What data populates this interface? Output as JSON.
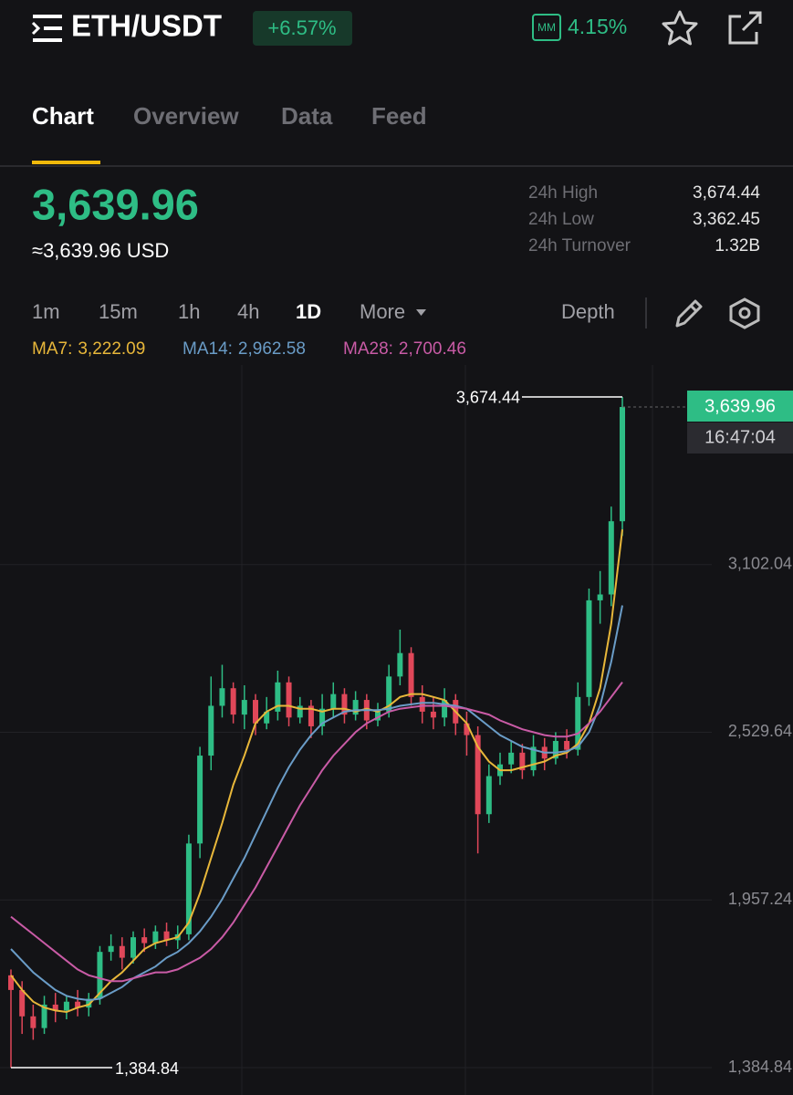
{
  "header": {
    "pair": "ETH/USDT",
    "change": "+6.57%",
    "mm_icon": "MM",
    "mm_value": "4.15%"
  },
  "tabs": [
    "Chart",
    "Overview",
    "Data",
    "Feed"
  ],
  "ticker": {
    "price": "3,639.96",
    "usd_price": "≈3,639.96 USD",
    "stats": [
      {
        "label": "24h High",
        "value": "3,674.44"
      },
      {
        "label": "24h Low",
        "value": "3,362.45"
      },
      {
        "label": "24h Turnover",
        "value": "1.32B"
      }
    ]
  },
  "toolbar": {
    "intervals": [
      "1m",
      "15m",
      "1h",
      "4h",
      "1D"
    ],
    "more": "More",
    "depth": "Depth"
  },
  "chart_data": {
    "type": "candlestick",
    "ylim": [
      1291.5,
      3783.3
    ],
    "yticks": [
      {
        "value": 3102.04,
        "label": "3,102.04"
      },
      {
        "value": 2529.64,
        "label": "2,529.64"
      },
      {
        "value": 1957.24,
        "label": "1,957.24"
      },
      {
        "value": 1384.84,
        "label": "1,384.84"
      }
    ],
    "grid": true,
    "up_color": "#2ebd85",
    "down_color": "#e04759",
    "open": [
      1700,
      1650,
      1560,
      1520,
      1600,
      1580,
      1610,
      1590,
      1620,
      1780,
      1800,
      1760,
      1830,
      1810,
      1850,
      1820,
      1840,
      2150,
      2450,
      2620,
      2680,
      2590,
      2640,
      2560,
      2600,
      2700,
      2580,
      2620,
      2550,
      2610,
      2660,
      2590,
      2640,
      2570,
      2600,
      2720,
      2800,
      2650,
      2600,
      2580,
      2640,
      2560,
      2520,
      2250,
      2380,
      2420,
      2460,
      2400,
      2480,
      2440,
      2500,
      2470,
      2650,
      2980,
      3000,
      3250
    ],
    "high": [
      1720,
      1680,
      1600,
      1630,
      1640,
      1630,
      1650,
      1640,
      1800,
      1840,
      1830,
      1850,
      1860,
      1870,
      1880,
      1870,
      2180,
      2480,
      2720,
      2760,
      2700,
      2690,
      2660,
      2650,
      2740,
      2720,
      2650,
      2640,
      2660,
      2700,
      2680,
      2670,
      2660,
      2630,
      2760,
      2880,
      2820,
      2690,
      2650,
      2680,
      2660,
      2600,
      2550,
      2420,
      2460,
      2500,
      2490,
      2520,
      2510,
      2530,
      2540,
      2700,
      3020,
      3080,
      3300,
      3674.44
    ],
    "low": [
      1384.84,
      1500,
      1480,
      1500,
      1540,
      1550,
      1560,
      1560,
      1600,
      1750,
      1720,
      1740,
      1780,
      1790,
      1800,
      1790,
      1820,
      2100,
      2400,
      2580,
      2560,
      2540,
      2520,
      2540,
      2570,
      2550,
      2560,
      2510,
      2520,
      2580,
      2560,
      2570,
      2540,
      2550,
      2580,
      2690,
      2620,
      2560,
      2540,
      2550,
      2520,
      2450,
      2116,
      2220,
      2350,
      2390,
      2370,
      2380,
      2400,
      2420,
      2440,
      2450,
      2620,
      2900,
      2960,
      3200
    ],
    "close": [
      1650,
      1560,
      1520,
      1600,
      1580,
      1610,
      1590,
      1620,
      1780,
      1800,
      1760,
      1830,
      1810,
      1850,
      1820,
      1840,
      2150,
      2450,
      2620,
      2680,
      2590,
      2640,
      2560,
      2600,
      2700,
      2580,
      2620,
      2550,
      2610,
      2660,
      2590,
      2640,
      2570,
      2600,
      2720,
      2800,
      2650,
      2600,
      2580,
      2640,
      2560,
      2520,
      2250,
      2380,
      2420,
      2460,
      2400,
      2480,
      2440,
      2500,
      2470,
      2650,
      2980,
      3000,
      3250,
      3639.96
    ],
    "ma": [
      {
        "name": "MA7:",
        "value_label": "3,222.09",
        "color": "#e8b73a",
        "values": [
          1700,
          1650,
          1610,
          1590,
          1580,
          1575,
          1590,
          1600,
          1640,
          1680,
          1710,
          1750,
          1790,
          1810,
          1820,
          1830,
          1880,
          1980,
          2100,
          2220,
          2350,
          2450,
          2560,
          2600,
          2620,
          2620,
          2610,
          2610,
          2600,
          2610,
          2610,
          2600,
          2610,
          2600,
          2620,
          2650,
          2660,
          2660,
          2650,
          2640,
          2600,
          2560,
          2480,
          2430,
          2400,
          2400,
          2410,
          2420,
          2430,
          2450,
          2460,
          2490,
          2560,
          2680,
          2900,
          3222.09
        ]
      },
      {
        "name": "MA14:",
        "value_label": "2,962.58",
        "color": "#6a9cc7",
        "values": [
          1790,
          1750,
          1710,
          1680,
          1650,
          1630,
          1620,
          1615,
          1620,
          1640,
          1660,
          1690,
          1710,
          1730,
          1760,
          1780,
          1810,
          1850,
          1900,
          1960,
          2030,
          2100,
          2180,
          2260,
          2340,
          2410,
          2470,
          2520,
          2560,
          2580,
          2600,
          2605,
          2605,
          2605,
          2610,
          2620,
          2625,
          2630,
          2630,
          2625,
          2620,
          2610,
          2580,
          2550,
          2520,
          2500,
          2480,
          2470,
          2460,
          2460,
          2465,
          2480,
          2530,
          2620,
          2770,
          2962.58
        ]
      },
      {
        "name": "MA28:",
        "value_label": "2,700.46",
        "color": "#c95ba6",
        "values": [
          1900,
          1870,
          1840,
          1810,
          1780,
          1750,
          1720,
          1700,
          1690,
          1680,
          1680,
          1690,
          1700,
          1710,
          1710,
          1720,
          1740,
          1760,
          1790,
          1830,
          1880,
          1940,
          2000,
          2070,
          2140,
          2210,
          2280,
          2340,
          2400,
          2450,
          2490,
          2530,
          2560,
          2580,
          2600,
          2610,
          2615,
          2620,
          2620,
          2620,
          2615,
          2610,
          2600,
          2590,
          2570,
          2555,
          2540,
          2530,
          2520,
          2515,
          2515,
          2525,
          2560,
          2600,
          2650,
          2700.46
        ]
      }
    ],
    "max_marker": {
      "value": 3674.44,
      "label": "3,674.44"
    },
    "min_marker": {
      "value": 1384.84,
      "label": "1,384.84"
    },
    "last_price": {
      "value": 3639.96,
      "label": "3,639.96"
    },
    "countdown": "16:47:04"
  }
}
